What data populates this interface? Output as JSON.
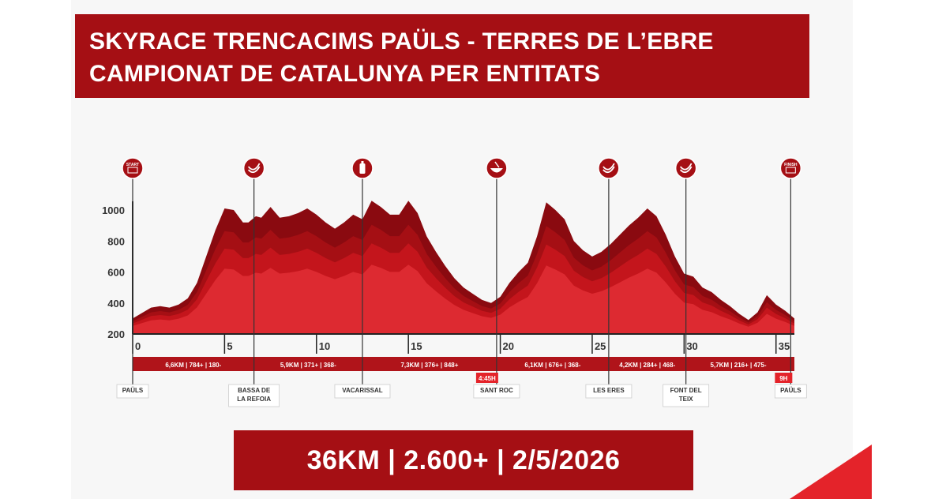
{
  "title": {
    "line1": "SKYRACE TRENCACIMS PAÜLS - TERRES DE L’EBRE",
    "line2": "CAMPIONAT DE CATALUNYA PER ENTITATS"
  },
  "footer": {
    "summary": "36KM | 2.600+ | 2/5/2026"
  },
  "colors": {
    "brand": "#a50f14",
    "profile_layers": [
      "#8a0a10",
      "#a50f14",
      "#c4151c",
      "#dd2a31"
    ],
    "segment_bar": "#b0141a",
    "time_badge": "#e4232a"
  },
  "chart_data": {
    "type": "area",
    "xlabel": "",
    "ylabel": "",
    "xlim": [
      0,
      36
    ],
    "ylim": [
      200,
      1100
    ],
    "x_ticks": [
      "0",
      "5",
      "10",
      "15",
      "20",
      "25",
      "30",
      "35"
    ],
    "y_ticks": [
      "200",
      "400",
      "600",
      "800",
      "1000"
    ],
    "grid": false,
    "series": [
      {
        "x": [
          0,
          1,
          1.5,
          2,
          2.5,
          3,
          3.5,
          4,
          4.5,
          5,
          5.5,
          6,
          6.3,
          6.7,
          7,
          7.5,
          8,
          8.5,
          9,
          9.5,
          10,
          10.5,
          11,
          11.5,
          12,
          12.5,
          13,
          13.5,
          14,
          14.5,
          15,
          15.5,
          16,
          16.5,
          17,
          17.5,
          18,
          18.5,
          19,
          19.5,
          20,
          20.5,
          21,
          21.5,
          22,
          22.5,
          23,
          23.5,
          24,
          24.5,
          25,
          25.5,
          26,
          26.5,
          27,
          27.5,
          28,
          28.5,
          29,
          29.5,
          30,
          30.5,
          31,
          31.5,
          32,
          32.5,
          33,
          33.5,
          34,
          34.5,
          35,
          35.5,
          36
        ],
        "values": [
          300,
          370,
          380,
          370,
          390,
          430,
          530,
          700,
          870,
          1010,
          1000,
          920,
          920,
          960,
          950,
          1020,
          950,
          960,
          980,
          1010,
          970,
          920,
          880,
          920,
          970,
          940,
          1060,
          1020,
          970,
          970,
          1060,
          980,
          830,
          730,
          640,
          560,
          500,
          460,
          420,
          400,
          440,
          530,
          600,
          660,
          830,
          1050,
          1000,
          940,
          800,
          740,
          700,
          730,
          780,
          840,
          900,
          950,
          1010,
          960,
          840,
          700,
          590,
          570,
          500,
          470,
          420,
          380,
          330,
          290,
          340,
          450,
          390,
          350,
          300
        ]
      }
    ],
    "checkpoints": [
      {
        "km": 0,
        "icon": "start-flag-icon",
        "icon_text": "START"
      },
      {
        "km": 6.6,
        "icon": "banana-icon",
        "icon_text": ""
      },
      {
        "km": 12.5,
        "icon": "water-bottle-icon",
        "icon_text": ""
      },
      {
        "km": 19.8,
        "icon": "soup-bowl-icon",
        "icon_text": ""
      },
      {
        "km": 25.9,
        "icon": "banana-icon",
        "icon_text": ""
      },
      {
        "km": 30.1,
        "icon": "banana-icon",
        "icon_text": ""
      },
      {
        "km": 35.8,
        "icon": "finish-flag-icon",
        "icon_text": "FINISH"
      }
    ],
    "segments": [
      {
        "start_km": 0,
        "end_km": 6.6,
        "label": "6,6KM | 784+ | 180-"
      },
      {
        "start_km": 6.6,
        "end_km": 12.5,
        "label": "5,9KM | 371+ | 368-"
      },
      {
        "start_km": 12.5,
        "end_km": 19.8,
        "label": "7,3KM | 376+ | 848+"
      },
      {
        "start_km": 19.8,
        "end_km": 25.9,
        "label": "6,1KM | 676+ | 368-"
      },
      {
        "start_km": 25.9,
        "end_km": 30.1,
        "label": "4,2KM | 284+ | 468-"
      },
      {
        "start_km": 30.1,
        "end_km": 35.8,
        "label": "5,7KM | 216+ | 475-"
      }
    ],
    "cutoffs": [
      {
        "km": 19.8,
        "label": "4:45H"
      },
      {
        "km": 35.8,
        "label": "9H"
      }
    ],
    "locations": [
      {
        "km": 0,
        "lines": [
          "PAÜLS"
        ]
      },
      {
        "km": 6.6,
        "lines": [
          "BASSA DE",
          "LA REFOIA"
        ]
      },
      {
        "km": 12.5,
        "lines": [
          "VACARISSAL"
        ]
      },
      {
        "km": 19.8,
        "lines": [
          "SANT ROC"
        ]
      },
      {
        "km": 25.9,
        "lines": [
          "LES ERES"
        ]
      },
      {
        "km": 30.1,
        "lines": [
          "FONT DEL",
          "TEIX"
        ]
      },
      {
        "km": 35.8,
        "lines": [
          "PAÜLS"
        ]
      }
    ]
  }
}
